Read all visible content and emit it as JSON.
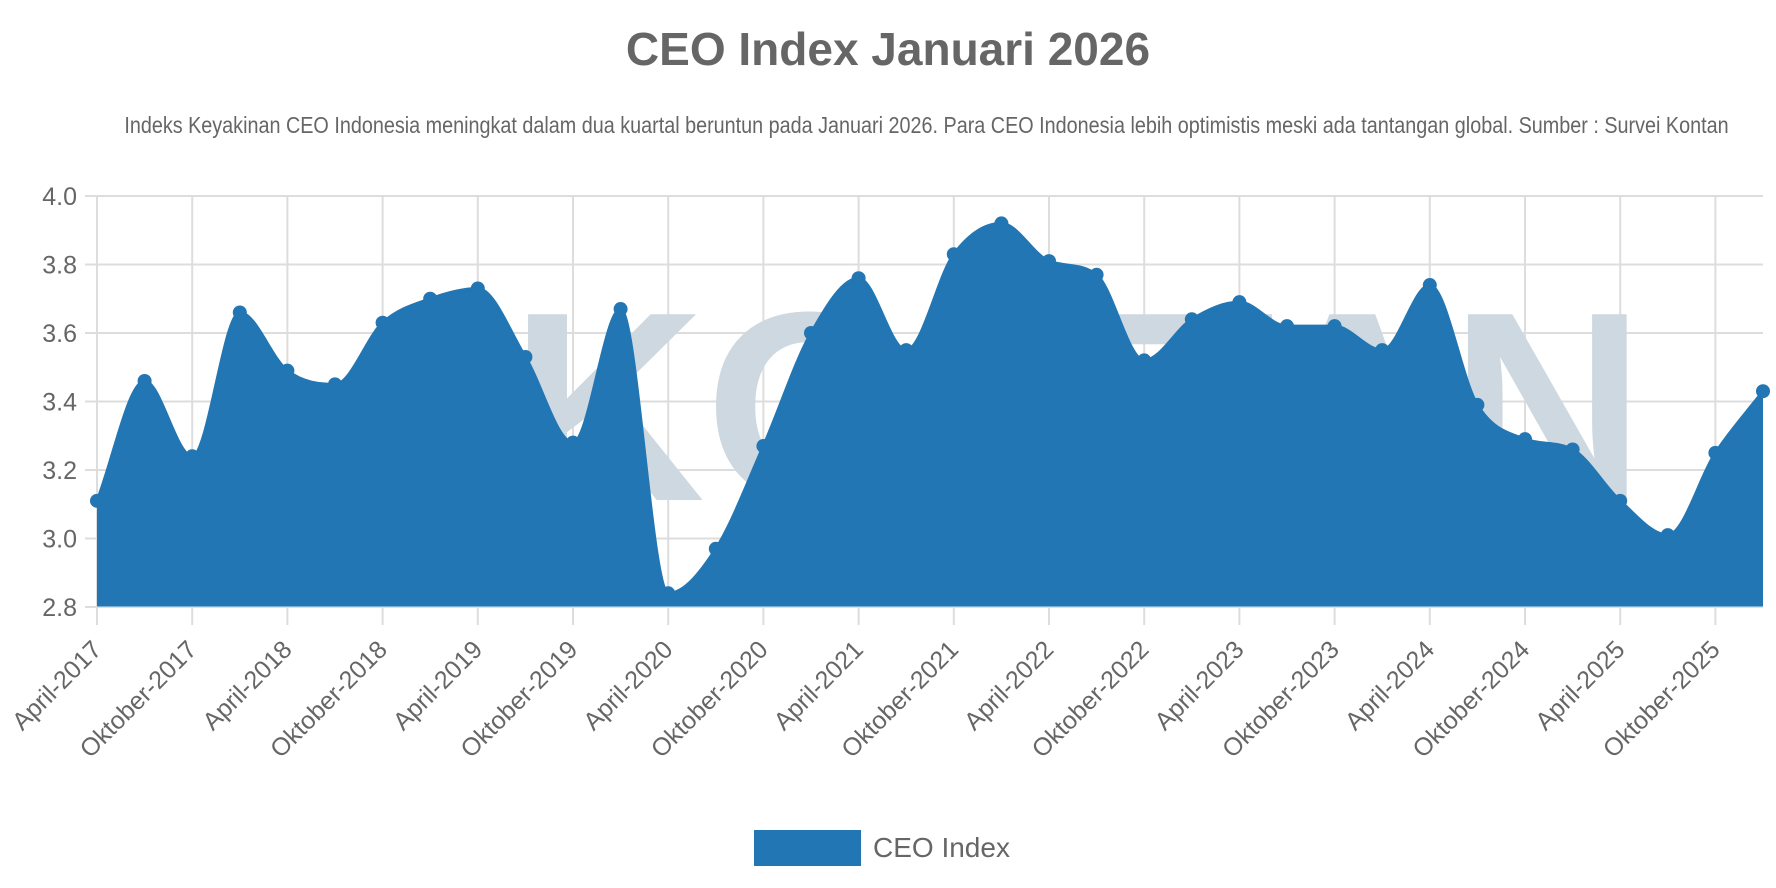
{
  "title": "CEO Index Januari 2026",
  "subtitle": "Indeks Keyakinan CEO Indonesia meningkat dalam dua kuartal beruntun pada Januari 2026. Para CEO Indonesia lebih optimistis meski ada tantangan global. Sumber : Survei Kontan",
  "watermark": "KONTAN",
  "legend": {
    "label": "CEO Index",
    "color": "#2176b3"
  },
  "colors": {
    "series": "#2176b3",
    "grid": "#dddddd",
    "text": "#666666",
    "watermark": "#cdd8e1"
  },
  "chart_data": {
    "type": "area",
    "title": "CEO Index Januari 2026",
    "subtitle": "Indeks Keyakinan CEO Indonesia meningkat dalam dua kuartal beruntun pada Januari 2026. Para CEO Indonesia lebih optimistis meski ada tantangan global. Sumber : Survei Kontan",
    "xlabel": "",
    "ylabel": "",
    "ylim": [
      2.8,
      4.0
    ],
    "yticks": [
      2.8,
      3.0,
      3.2,
      3.4,
      3.6,
      3.8,
      4.0
    ],
    "grid": true,
    "legend_position": "bottom",
    "x": [
      "April-2017",
      "Juli-2017",
      "Oktober-2017",
      "Januari-2018",
      "April-2018",
      "Juli-2018",
      "Oktober-2018",
      "Januari-2019",
      "April-2019",
      "Juli-2019",
      "Oktober-2019",
      "Januari-2020",
      "April-2020",
      "Juli-2020",
      "Oktober-2020",
      "Januari-2021",
      "April-2021",
      "Juli-2021",
      "Oktober-2021",
      "Januari-2022",
      "April-2022",
      "Juli-2022",
      "Oktober-2022",
      "Januari-2023",
      "April-2023",
      "Juli-2023",
      "Oktober-2023",
      "Januari-2024",
      "April-2024",
      "Juli-2024",
      "Oktober-2024",
      "Januari-2025",
      "April-2025",
      "Juli-2025",
      "Oktober-2025",
      "Januari-2026"
    ],
    "xtick_labels": [
      "April-2017",
      "Oktober-2017",
      "April-2018",
      "Oktober-2018",
      "April-2019",
      "Oktober-2019",
      "April-2020",
      "Oktober-2020",
      "April-2021",
      "Oktober-2021",
      "April-2022",
      "Oktober-2022",
      "April-2023",
      "Oktober-2023",
      "April-2024",
      "Oktober-2024",
      "April-2025",
      "Oktober-2025"
    ],
    "series": [
      {
        "name": "CEO Index",
        "values": [
          3.11,
          3.46,
          3.24,
          3.66,
          3.49,
          3.45,
          3.63,
          3.7,
          3.73,
          3.53,
          3.28,
          3.67,
          2.84,
          2.97,
          3.27,
          3.6,
          3.76,
          3.55,
          3.83,
          3.92,
          3.81,
          3.77,
          3.52,
          3.64,
          3.69,
          3.62,
          3.62,
          3.55,
          3.74,
          3.39,
          3.29,
          3.26,
          3.11,
          3.01,
          3.25,
          3.43
        ]
      }
    ]
  }
}
